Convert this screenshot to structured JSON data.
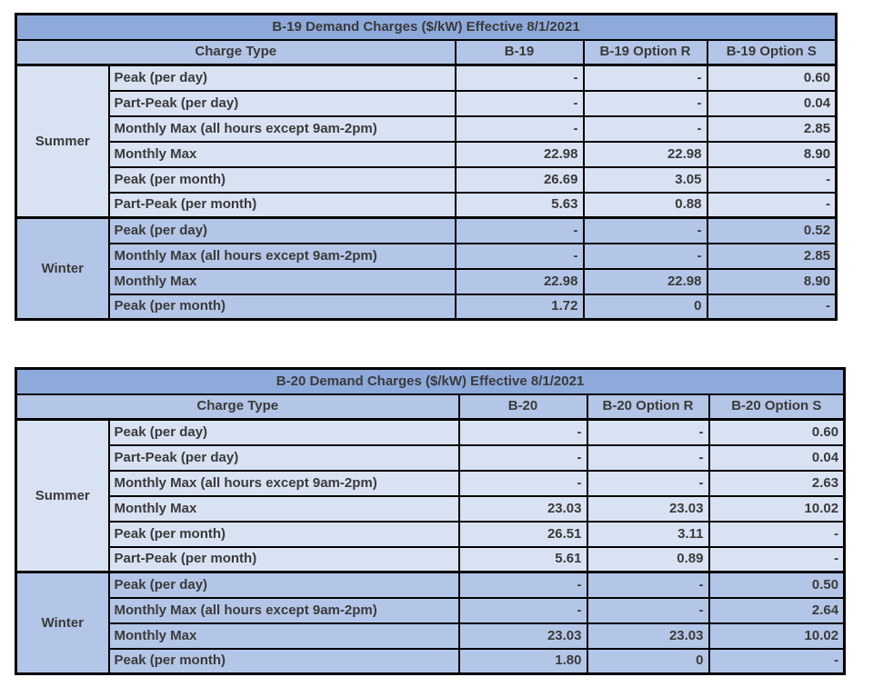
{
  "colors": {
    "title_bg": "#8eaadb",
    "header_bg": "#b4c6e7",
    "summer_bg": "#d9e2f3",
    "winter_bg": "#b4c6e7",
    "border_color": "#000000",
    "text_color": "#3a3a3a",
    "page_bg": "#ffffff"
  },
  "tables": [
    {
      "title": "B-19 Demand Charges ($/kW) Effective 8/1/2021",
      "columns": [
        "Charge Type",
        "B-19",
        "B-19 Option R",
        "B-19 Option S"
      ],
      "sections": [
        {
          "season": "Summer",
          "rows": [
            {
              "label": "Peak (per day)",
              "values": [
                "-",
                "-",
                "0.60"
              ]
            },
            {
              "label": "Part-Peak (per day)",
              "values": [
                "-",
                "-",
                "0.04"
              ]
            },
            {
              "label": "Monthly Max (all hours except 9am-2pm)",
              "values": [
                "-",
                "-",
                "2.85"
              ]
            },
            {
              "label": "Monthly Max",
              "values": [
                "22.98",
                "22.98",
                "8.90"
              ]
            },
            {
              "label": "Peak (per month)",
              "values": [
                "26.69",
                "3.05",
                "-"
              ]
            },
            {
              "label": "Part-Peak (per month)",
              "values": [
                "5.63",
                "0.88",
                "-"
              ]
            }
          ]
        },
        {
          "season": "Winter",
          "rows": [
            {
              "label": "Peak (per day)",
              "values": [
                "-",
                "-",
                "0.52"
              ]
            },
            {
              "label": "Monthly Max (all hours except 9am-2pm)",
              "values": [
                "-",
                "-",
                "2.85"
              ]
            },
            {
              "label": "Monthly Max",
              "values": [
                "22.98",
                "22.98",
                "8.90"
              ]
            },
            {
              "label": "Peak (per month)",
              "values": [
                "1.72",
                "0",
                "-"
              ]
            }
          ]
        }
      ]
    },
    {
      "title": "B-20 Demand Charges ($/kW) Effective 8/1/2021",
      "columns": [
        "Charge Type",
        "B-20",
        "B-20 Option R",
        "B-20 Option S"
      ],
      "sections": [
        {
          "season": "Summer",
          "rows": [
            {
              "label": "Peak (per day)",
              "values": [
                "-",
                "-",
                "0.60"
              ]
            },
            {
              "label": "Part-Peak (per day)",
              "values": [
                "-",
                "-",
                "0.04"
              ]
            },
            {
              "label": "Monthly Max (all hours except 9am-2pm)",
              "values": [
                "-",
                "-",
                "2.63"
              ]
            },
            {
              "label": "Monthly Max",
              "values": [
                "23.03",
                "23.03",
                "10.02"
              ]
            },
            {
              "label": "Peak (per month)",
              "values": [
                "26.51",
                "3.11",
                "-"
              ]
            },
            {
              "label": "Part-Peak (per month)",
              "values": [
                "5.61",
                "0.89",
                "-"
              ]
            }
          ]
        },
        {
          "season": "Winter",
          "rows": [
            {
              "label": "Peak (per day)",
              "values": [
                "-",
                "-",
                "0.50"
              ]
            },
            {
              "label": "Monthly Max (all hours except 9am-2pm)",
              "values": [
                "-",
                "-",
                "2.64"
              ]
            },
            {
              "label": "Monthly Max",
              "values": [
                "23.03",
                "23.03",
                "10.02"
              ]
            },
            {
              "label": "Peak (per month)",
              "values": [
                "1.80",
                "0",
                "-"
              ]
            }
          ]
        }
      ]
    }
  ]
}
